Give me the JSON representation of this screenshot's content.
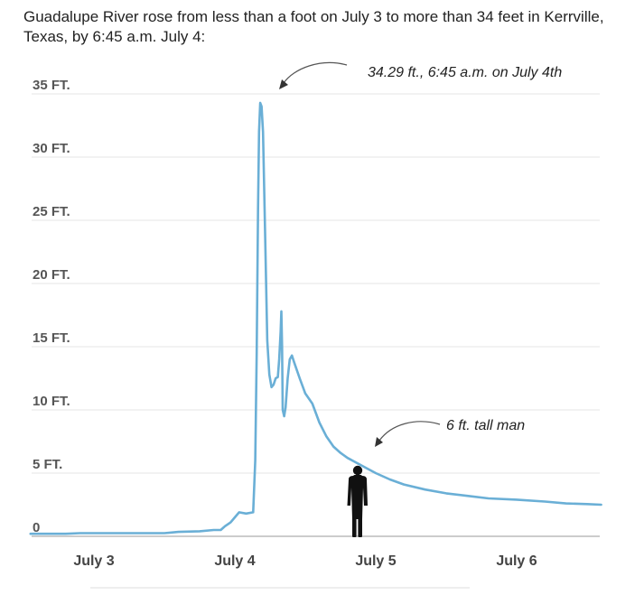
{
  "page": {
    "title": "Guadalupe River rose from less than a foot on July 3 to more than 34 feet in Kerrville, Texas, by 6:45 a.m. July 4:"
  },
  "chart_data": {
    "type": "line",
    "title": "Guadalupe River rose from less than a foot on July 3 to more than 34 feet in Kerrville, Texas, by 6:45 a.m. July 4:",
    "xlabel": "",
    "ylabel": "",
    "ylim": [
      0,
      35
    ],
    "xlim": [
      -0.5,
      3.6
    ],
    "x_unit": "days since July 3",
    "grid": true,
    "y_ticks": [
      {
        "value": 0,
        "label": "0"
      },
      {
        "value": 5,
        "label": "5 FT."
      },
      {
        "value": 10,
        "label": "10 FT."
      },
      {
        "value": 15,
        "label": "15 FT."
      },
      {
        "value": 20,
        "label": "20 FT."
      },
      {
        "value": 25,
        "label": "25 FT."
      },
      {
        "value": 30,
        "label": "30 FT."
      },
      {
        "value": 35,
        "label": "35 FT."
      }
    ],
    "x_ticks": [
      {
        "value": 0,
        "label": "July 3"
      },
      {
        "value": 1,
        "label": "July 4"
      },
      {
        "value": 2,
        "label": "July 5"
      },
      {
        "value": 3,
        "label": "July 6"
      }
    ],
    "colors": {
      "series": "#6aafd6",
      "grid": "#e6e6e6",
      "text": "#555555"
    },
    "series": [
      {
        "name": "",
        "points": [
          [
            -0.45,
            0.2
          ],
          [
            -0.2,
            0.2
          ],
          [
            -0.1,
            0.25
          ],
          [
            0,
            0.25
          ],
          [
            0.25,
            0.25
          ],
          [
            0.5,
            0.25
          ],
          [
            0.55,
            0.3
          ],
          [
            0.6,
            0.35
          ],
          [
            0.75,
            0.4
          ],
          [
            0.85,
            0.5
          ],
          [
            0.9,
            0.5
          ],
          [
            0.93,
            0.8
          ],
          [
            0.97,
            1.1
          ],
          [
            1.0,
            1.5
          ],
          [
            1.03,
            1.9
          ],
          [
            1.08,
            1.8
          ],
          [
            1.13,
            1.9
          ],
          [
            1.145,
            6.0
          ],
          [
            1.155,
            14.5
          ],
          [
            1.165,
            26.0
          ],
          [
            1.172,
            32.0
          ],
          [
            1.18,
            34.29
          ],
          [
            1.19,
            34.0
          ],
          [
            1.2,
            32.0
          ],
          [
            1.215,
            24.0
          ],
          [
            1.23,
            15.5
          ],
          [
            1.245,
            12.8
          ],
          [
            1.26,
            11.8
          ],
          [
            1.275,
            12.0
          ],
          [
            1.29,
            12.5
          ],
          [
            1.305,
            12.6
          ],
          [
            1.315,
            14.0
          ],
          [
            1.325,
            16.2
          ],
          [
            1.33,
            17.8
          ],
          [
            1.335,
            15.0
          ],
          [
            1.34,
            10.0
          ],
          [
            1.35,
            9.5
          ],
          [
            1.36,
            10.2
          ],
          [
            1.375,
            12.5
          ],
          [
            1.39,
            14.0
          ],
          [
            1.405,
            14.3
          ],
          [
            1.42,
            13.8
          ],
          [
            1.46,
            12.5
          ],
          [
            1.5,
            11.3
          ],
          [
            1.55,
            10.5
          ],
          [
            1.6,
            9.0
          ],
          [
            1.65,
            7.9
          ],
          [
            1.7,
            7.1
          ],
          [
            1.75,
            6.6
          ],
          [
            1.8,
            6.2
          ],
          [
            1.9,
            5.6
          ],
          [
            2.0,
            5.0
          ],
          [
            2.1,
            4.5
          ],
          [
            2.2,
            4.1
          ],
          [
            2.35,
            3.7
          ],
          [
            2.5,
            3.4
          ],
          [
            2.65,
            3.2
          ],
          [
            2.8,
            3.0
          ],
          [
            3.0,
            2.9
          ],
          [
            3.2,
            2.75
          ],
          [
            3.35,
            2.6
          ],
          [
            3.5,
            2.55
          ],
          [
            3.6,
            2.5
          ]
        ]
      }
    ],
    "annotations": [
      {
        "label": "34.29 ft., 6:45 a.m. on July 4th",
        "x": 1.18,
        "y": 34.29
      },
      {
        "label": "6 ft. tall man",
        "x": 1.85,
        "y": 6.0
      }
    ]
  }
}
